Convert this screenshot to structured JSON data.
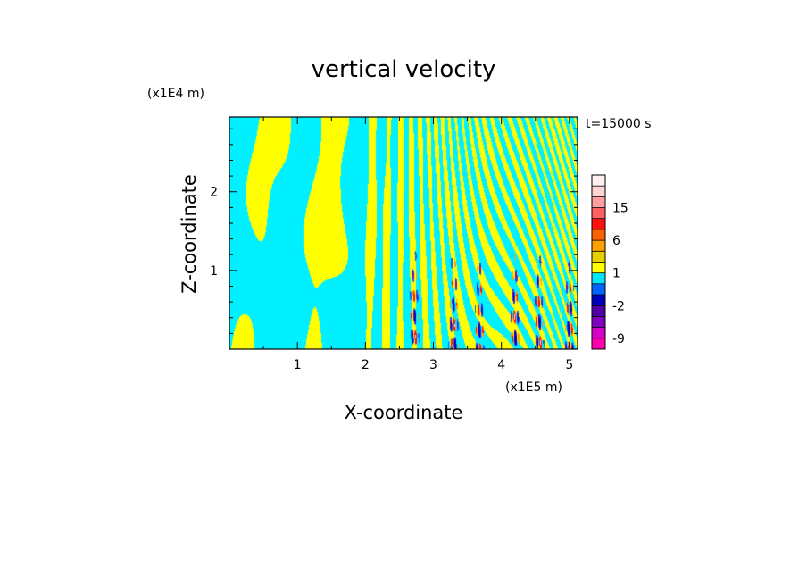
{
  "chart_data": {
    "type": "heatmap",
    "title": "vertical velocity",
    "xlabel": "X-coordinate",
    "ylabel": "Z-coordinate",
    "x_unit": "(x1E5 m)",
    "y_unit": "(x1E4 m)",
    "time_label": "t=15000 s",
    "xlim": [
      0,
      5.12
    ],
    "ylim": [
      0,
      2.95
    ],
    "x_ticks": [
      1,
      2,
      3,
      4,
      5
    ],
    "y_ticks": [
      1,
      2
    ],
    "colorbar": {
      "levels": [
        -12,
        -9,
        -6,
        -3,
        -2,
        -1,
        0,
        1,
        2,
        3,
        6,
        9,
        12,
        15,
        18,
        21
      ],
      "colors": [
        "#ff00b0",
        "#d800c8",
        "#8000c0",
        "#5000a8",
        "#0000b8",
        "#0064ff",
        "#00e4ff",
        "#ffff00",
        "#e8d000",
        "#ffa000",
        "#ff6000",
        "#ff1010",
        "#ff6060",
        "#ffa0a0",
        "#ffd4d4",
        "#fff0f0"
      ],
      "tick_labels": [
        "-9",
        "-2",
        "1",
        "6",
        "15"
      ],
      "tick_values": [
        -9,
        -2,
        1,
        6,
        15
      ]
    },
    "field_colors": {
      "positive": "#ffff00",
      "negative": "#00f0ff",
      "strong_up": "#ff1010",
      "strong_down": "#0000b8"
    }
  }
}
